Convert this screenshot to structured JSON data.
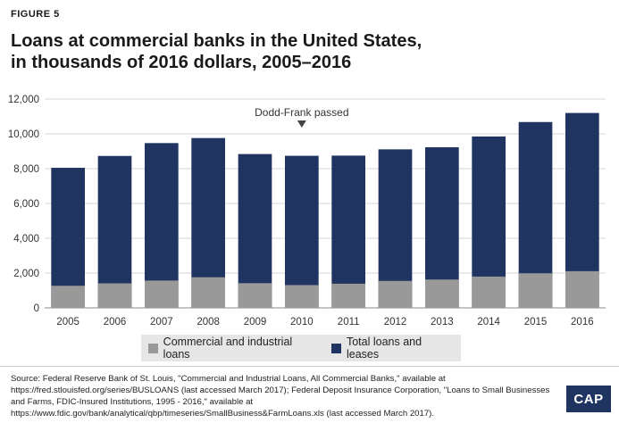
{
  "figure_label": "FIGURE 5",
  "title_line1": "Loans at commercial banks in the United States,",
  "title_line2": "in thousands of 2016 dollars, 2005–2016",
  "chart_data": {
    "type": "bar",
    "stacked": false,
    "overlay": true,
    "categories": [
      "2005",
      "2006",
      "2007",
      "2008",
      "2009",
      "2010",
      "2011",
      "2012",
      "2013",
      "2014",
      "2015",
      "2016"
    ],
    "series": [
      {
        "name": "Total loans and leases",
        "color": "#1f3460",
        "values": [
          8050,
          8730,
          9470,
          9760,
          8840,
          8740,
          8750,
          9110,
          9230,
          9850,
          10680,
          11200
        ]
      },
      {
        "name": "Commercial and industrial loans",
        "color": "#999999",
        "values": [
          1270,
          1410,
          1570,
          1760,
          1420,
          1310,
          1390,
          1550,
          1630,
          1800,
          1990,
          2110
        ]
      }
    ],
    "yticks": [
      "0",
      "2,000",
      "4,000",
      "6,000",
      "8,000",
      "10,000",
      "12,000"
    ],
    "ylim": [
      0,
      12000
    ],
    "grid": true,
    "legend_position": "bottom",
    "annotation": {
      "text": "Dodd-Frank passed",
      "category": "2010"
    }
  },
  "legend": {
    "item1": "Commercial and industrial loans",
    "item2": "Total loans and leases",
    "color1": "#999999",
    "color2": "#1f3460"
  },
  "source_text": "Source: Federal Reserve Bank of St. Louis, \"Commercial and Industrial Loans, All Commercial Banks,\" available at https://fred.stlouisfed.org/series/BUSLOANS (last accessed March 2017); Federal Deposit Insurance Corporation, \"Loans to Small Businesses and Farms, FDIC-Insured Institutions, 1995 - 2016,\" available at https://www.fdic.gov/bank/analytical/qbp/timeseries/SmallBusiness&FarmLoans.xls (last accessed March 2017).",
  "logo_text": "CAP"
}
